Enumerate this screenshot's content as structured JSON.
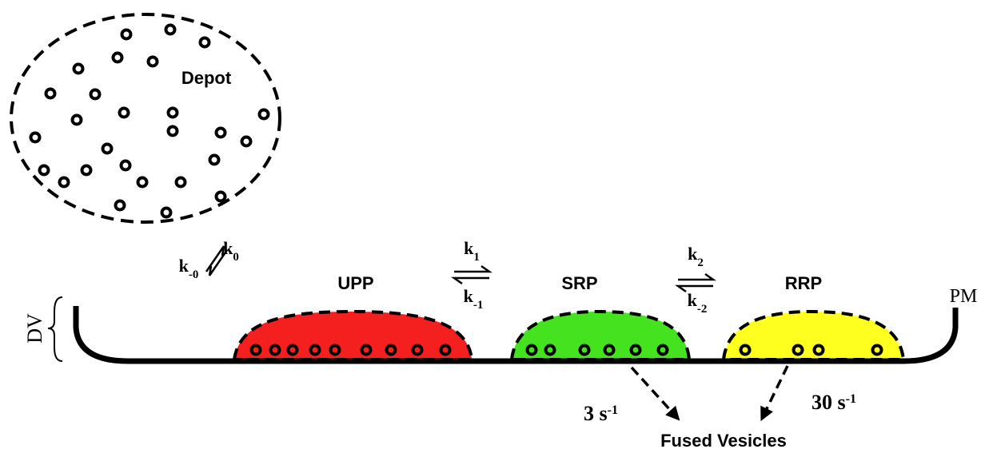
{
  "depot": {
    "label": "Depot"
  },
  "pools": [
    {
      "label": "UPP",
      "color": "#f41f1f"
    },
    {
      "label": "SRP",
      "color": "#44e21f"
    },
    {
      "label": "RRP",
      "color": "#ffff1f"
    }
  ],
  "membrane": {
    "label": "PM",
    "side_label": "DV"
  },
  "rates": [
    {
      "forward": {
        "base": "k",
        "sub": "0"
      },
      "backward": {
        "base": "k",
        "sub": "-0"
      }
    },
    {
      "forward": {
        "base": "k",
        "sub": "1"
      },
      "backward": {
        "base": "k",
        "sub": "-1"
      }
    },
    {
      "forward": {
        "base": "k",
        "sub": "2"
      },
      "backward": {
        "base": "k",
        "sub": "-2"
      }
    }
  ],
  "fusion": [
    {
      "text": "3 s",
      "sup": "-1"
    },
    {
      "text": "30 s",
      "sup": "-1"
    }
  ],
  "fused": {
    "label": "Fused Vesicles"
  }
}
